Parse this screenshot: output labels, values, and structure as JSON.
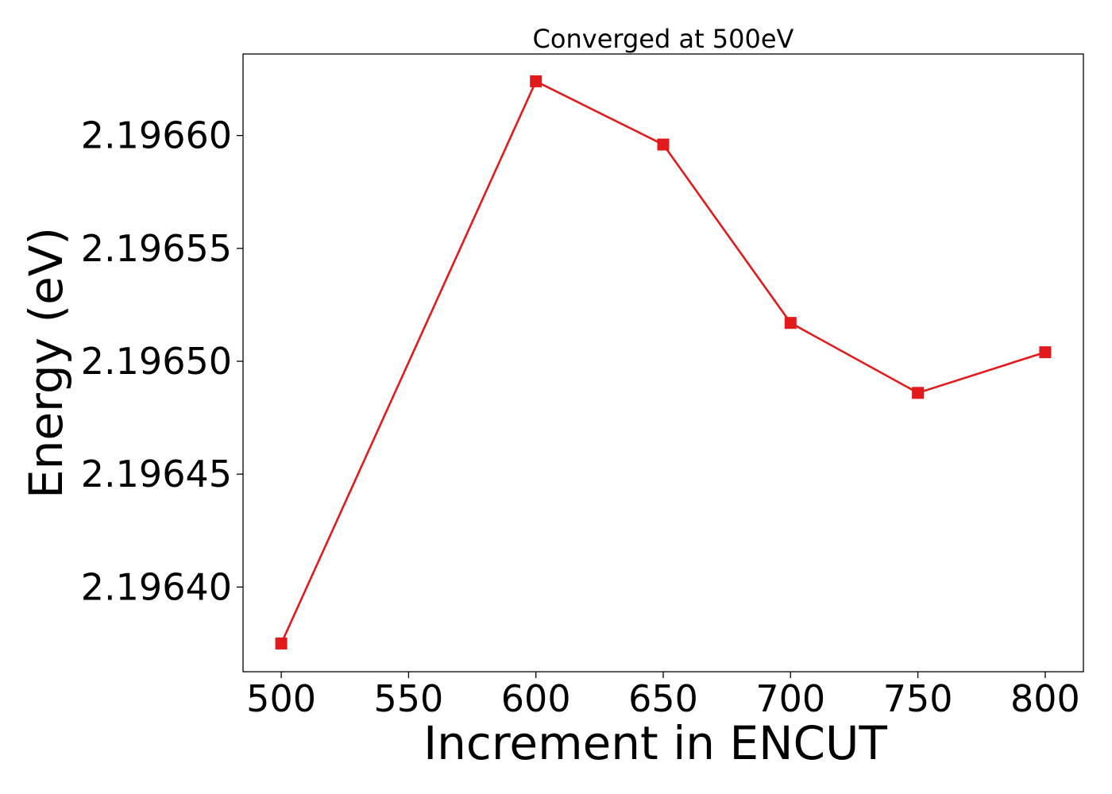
{
  "chart_data": {
    "type": "line",
    "title": "Converged at 500eV",
    "xlabel": "Increment in ENCUT",
    "ylabel": "Energy (eV)",
    "x": [
      500,
      600,
      650,
      700,
      750,
      800
    ],
    "series": [
      {
        "values": [
          2.196375,
          2.196624,
          2.196596,
          2.196517,
          2.196486,
          2.196504
        ],
        "color": "#e31a1c",
        "marker": "square"
      }
    ],
    "x_ticks": [
      500,
      550,
      600,
      650,
      700,
      750,
      800
    ],
    "x_tick_labels": [
      "500",
      "550",
      "600",
      "650",
      "700",
      "750",
      "800"
    ],
    "y_ticks": [
      2.1964,
      2.19645,
      2.1965,
      2.19655,
      2.1966
    ],
    "y_tick_labels": [
      "2.19640",
      "2.19645",
      "2.19650",
      "2.19655",
      "2.19660"
    ],
    "xlim": [
      485,
      815
    ],
    "ylim": [
      2.1963625,
      2.1966361
    ],
    "grid": false,
    "legend": "none"
  }
}
